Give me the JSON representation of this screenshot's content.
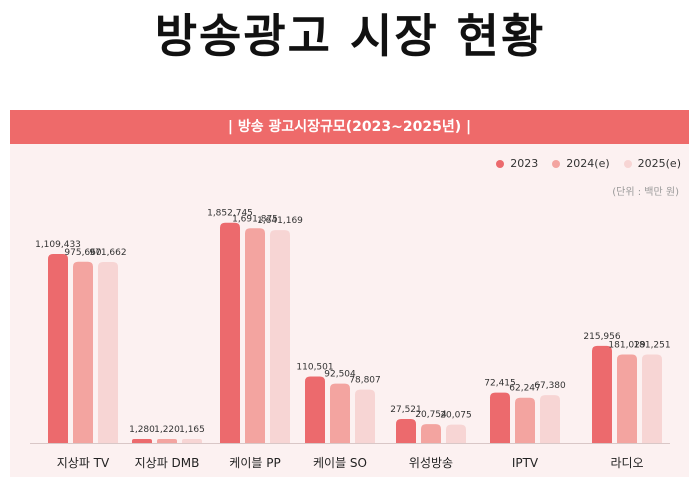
{
  "page": {
    "title": "방송광고 시장 현황"
  },
  "chart_data": {
    "type": "bar",
    "title": "| 방송 광고시장규모(2023~2025년) |",
    "unit_note": "(단위 : 백만 원)",
    "categories": [
      "지상파 TV",
      "지상파 DMB",
      "케이블 PP",
      "케이블 SO",
      "위성방송",
      "IPTV",
      "라디오"
    ],
    "series": [
      {
        "name": "2023",
        "color": "#ec6a6d",
        "values": [
          1109433,
          1280,
          1852745,
          110501,
          27521,
          72415,
          215956
        ],
        "labels": [
          "1,109,433",
          "1,280",
          "1,852,745",
          "110,501",
          "27,521",
          "72,415",
          "215,956"
        ]
      },
      {
        "name": "2024(e)",
        "color": "#f3a4a0",
        "values": [
          975660,
          1220,
          1691875,
          92504,
          20754,
          62247,
          181029
        ],
        "labels": [
          "975,660",
          "1,220",
          "1,691,875",
          "92,504",
          "20,754",
          "62,247",
          "181,029"
        ]
      },
      {
        "name": "2025(e)",
        "color": "#f7d5d4",
        "values": [
          971662,
          1165,
          1641169,
          78807,
          20075,
          67380,
          181251
        ],
        "labels": [
          "971,662",
          "1,165",
          "1,641,169",
          "78,807",
          "20,075",
          "67,380",
          "181,251"
        ]
      }
    ],
    "ylim": [
      0,
      2000000
    ],
    "axis_scale": "symlog",
    "legend_position": "top-right",
    "grid": false
  }
}
